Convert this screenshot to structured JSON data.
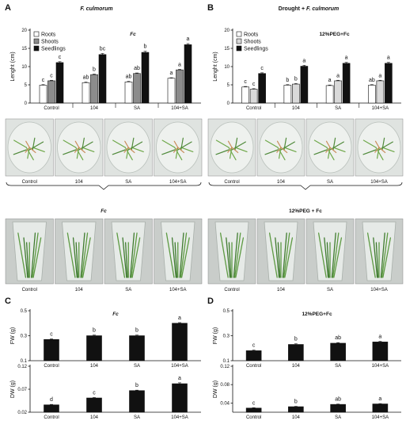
{
  "panels": {
    "A": {
      "letter": "A",
      "header": "F. culmorum"
    },
    "B": {
      "letter": "B",
      "header_prefix": "Drought + ",
      "header_species": "F. culmorum"
    },
    "C": {
      "letter": "C"
    },
    "D": {
      "letter": "D"
    }
  },
  "photo_strips": [
    {
      "id": "A-petri",
      "labels": [
        "Control",
        "104",
        "SA",
        "104+SA"
      ]
    },
    {
      "id": "B-petri",
      "labels": [
        "Control",
        "104",
        "SA",
        "104+SA"
      ]
    },
    {
      "id": "A-tubes",
      "title": "Fc",
      "labels": [
        "Control",
        "104",
        "SA",
        "104+SA"
      ]
    },
    {
      "id": "B-tubes",
      "title": "12%PEG + Fc",
      "labels": [
        "Control",
        "104",
        "SA",
        "104+SA"
      ]
    }
  ],
  "colors": {
    "roots": "#ffffff",
    "shoots_A": "#8c8c8c",
    "shoots_B": "#d9d9d9",
    "seedlings": "#111111",
    "bar_black": "#111111"
  },
  "chart_data": [
    {
      "id": "A-length",
      "type": "bar",
      "title": "Fc",
      "ylabel": "Lenght (cm)",
      "ylim": [
        0,
        20
      ],
      "yticks": [
        0,
        5,
        10,
        15,
        20
      ],
      "categories": [
        "Control",
        "104",
        "SA",
        "104+SA"
      ],
      "legend": "top-left",
      "series": [
        {
          "name": "Roots",
          "color": "roots",
          "values": [
            4.9,
            5.6,
            5.8,
            6.8
          ],
          "errors": [
            0.15,
            0.15,
            0.15,
            0.15
          ],
          "sig": [
            "c",
            "ab",
            "ab",
            "a"
          ]
        },
        {
          "name": "Shoots",
          "color": "shoots_A",
          "values": [
            6.1,
            7.8,
            8.1,
            9.1
          ],
          "errors": [
            0.15,
            0.15,
            0.15,
            0.15
          ],
          "sig": [
            "c",
            "b",
            "ab",
            "a"
          ]
        },
        {
          "name": "Seedlings",
          "color": "seedlings",
          "values": [
            11.1,
            13.3,
            13.9,
            16.0
          ],
          "errors": [
            0.25,
            0.3,
            0.3,
            0.3
          ],
          "sig": [
            "c",
            "bc",
            "b",
            "a"
          ]
        }
      ]
    },
    {
      "id": "B-length",
      "type": "bar",
      "title": "12%PEG+Fc",
      "ylabel": "Lenght (cm)",
      "ylim": [
        0,
        20
      ],
      "yticks": [
        0,
        5,
        10,
        15,
        20
      ],
      "categories": [
        "Control",
        "104",
        "SA",
        "104+SA"
      ],
      "legend": "top-left",
      "series": [
        {
          "name": "Roots",
          "color": "roots",
          "values": [
            4.4,
            4.9,
            4.8,
            4.9
          ],
          "errors": [
            0.15,
            0.15,
            0.15,
            0.15
          ],
          "sig": [
            "c",
            "b",
            "a",
            "ab"
          ]
        },
        {
          "name": "Shoots",
          "color": "shoots_B",
          "values": [
            3.8,
            5.2,
            6.1,
            6.1
          ],
          "errors": [
            0.15,
            0.15,
            0.15,
            0.15
          ],
          "sig": [
            "c",
            "b",
            "a",
            "a"
          ]
        },
        {
          "name": "Seedlings",
          "color": "seedlings",
          "values": [
            8.1,
            10.1,
            10.9,
            10.9
          ],
          "errors": [
            0.2,
            0.25,
            0.25,
            0.25
          ],
          "sig": [
            "c",
            "a",
            "a",
            "a"
          ]
        }
      ]
    },
    {
      "id": "C-FW",
      "type": "bar",
      "title": "Fc",
      "ylabel": "FW (g)",
      "ylim": [
        0.1,
        0.5
      ],
      "yticks": [
        0.1,
        0.3,
        0.5
      ],
      "categories": [
        "Control",
        "104",
        "SA",
        "104+SA"
      ],
      "series": [
        {
          "values": [
            0.27,
            0.3,
            0.3,
            0.4
          ],
          "errors": [
            0.005,
            0.005,
            0.005,
            0.005
          ],
          "sig": [
            "c",
            "b",
            "b",
            "a"
          ]
        }
      ]
    },
    {
      "id": "C-DW",
      "type": "bar",
      "ylabel": "DW (g)",
      "ylim": [
        0.02,
        0.12
      ],
      "yticks": [
        0.02,
        0.07,
        0.12
      ],
      "categories": [
        "Control",
        "104",
        "SA",
        "104+SA"
      ],
      "series": [
        {
          "values": [
            0.036,
            0.051,
            0.067,
            0.082
          ],
          "errors": [
            0.001,
            0.001,
            0.001,
            0.002
          ],
          "sig": [
            "d",
            "c",
            "b",
            "a"
          ]
        }
      ]
    },
    {
      "id": "D-FW",
      "type": "bar",
      "title": "12%PEG+Fc",
      "ylabel": "FW (g)",
      "ylim": [
        0.1,
        0.5
      ],
      "yticks": [
        0.1,
        0.3,
        0.5
      ],
      "categories": [
        "Control",
        "104",
        "SA",
        "104+SA"
      ],
      "series": [
        {
          "values": [
            0.18,
            0.23,
            0.24,
            0.25
          ],
          "errors": [
            0.005,
            0.005,
            0.005,
            0.005
          ],
          "sig": [
            "c",
            "b",
            "ab",
            "a"
          ]
        }
      ]
    },
    {
      "id": "D-DW",
      "type": "bar",
      "ylabel": "DW (g)",
      "ylim": [
        0.02,
        0.12
      ],
      "yticks": [
        0.04,
        0.08,
        0.12
      ],
      "categories": [
        "Control",
        "104",
        "SA",
        "104+SA"
      ],
      "series": [
        {
          "values": [
            0.029,
            0.032,
            0.037,
            0.038
          ],
          "errors": [
            0.0008,
            0.0008,
            0.0008,
            0.0008
          ],
          "sig": [
            "c",
            "b",
            "ab",
            "a"
          ]
        }
      ]
    }
  ]
}
